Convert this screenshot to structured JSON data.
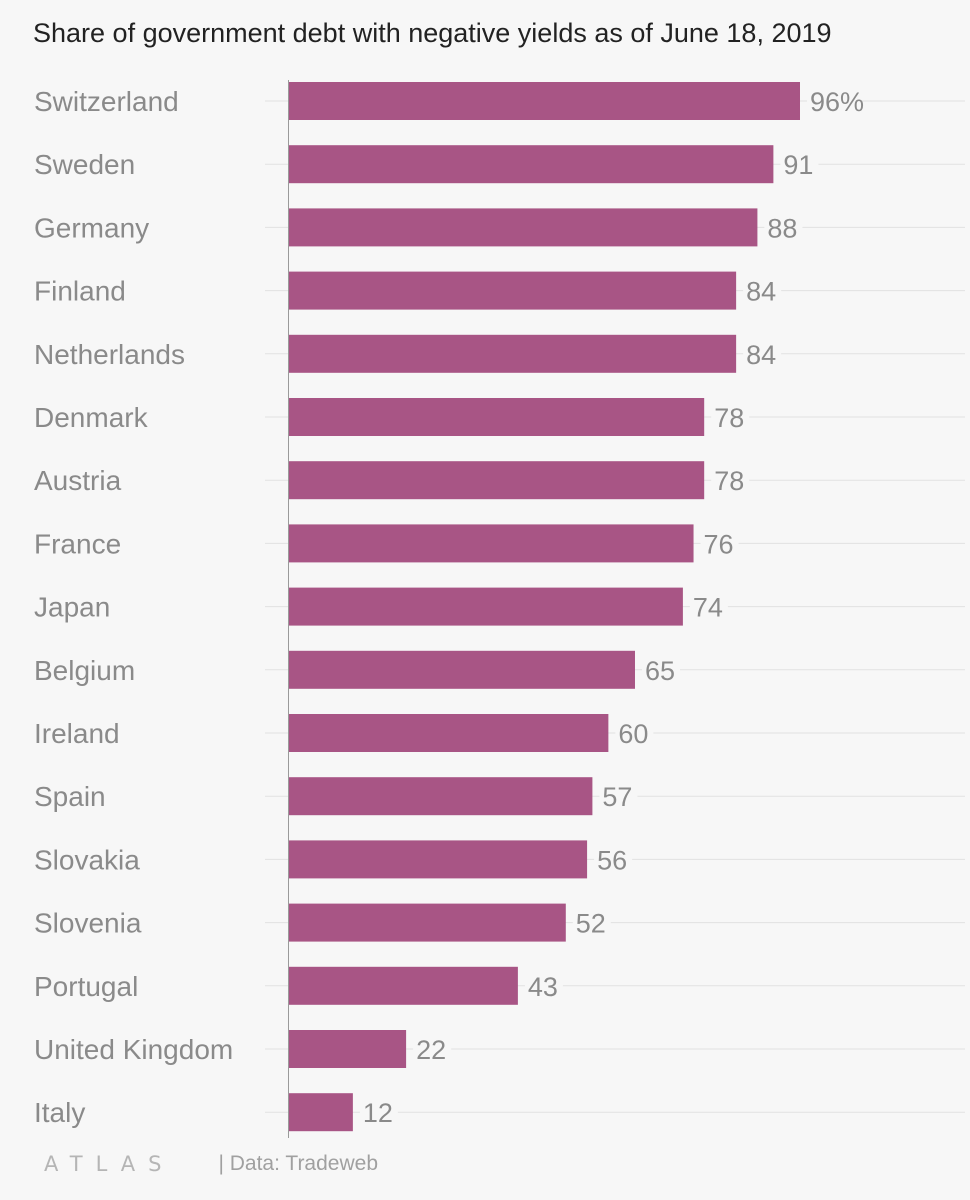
{
  "chart_data": {
    "type": "bar",
    "orientation": "horizontal",
    "title": "Share of government debt with negative yields as of June 18, 2019",
    "categories": [
      "Switzerland",
      "Sweden",
      "Germany",
      "Finland",
      "Netherlands",
      "Denmark",
      "Austria",
      "France",
      "Japan",
      "Belgium",
      "Ireland",
      "Spain",
      "Slovakia",
      "Slovenia",
      "Portugal",
      "United Kingdom",
      "Italy"
    ],
    "values": [
      96,
      91,
      88,
      84,
      84,
      78,
      78,
      76,
      74,
      65,
      60,
      57,
      56,
      52,
      43,
      22,
      12
    ],
    "value_labels": [
      "96%",
      "91",
      "88",
      "84",
      "84",
      "78",
      "78",
      "76",
      "74",
      "65",
      "60",
      "57",
      "56",
      "52",
      "43",
      "22",
      "12"
    ],
    "unit": "%",
    "xlim": [
      0,
      100
    ],
    "bar_color": "#a85585",
    "grid": true,
    "legend": "none"
  },
  "footer": {
    "logo": "ATLAS",
    "source": "| Data: Tradeweb"
  }
}
